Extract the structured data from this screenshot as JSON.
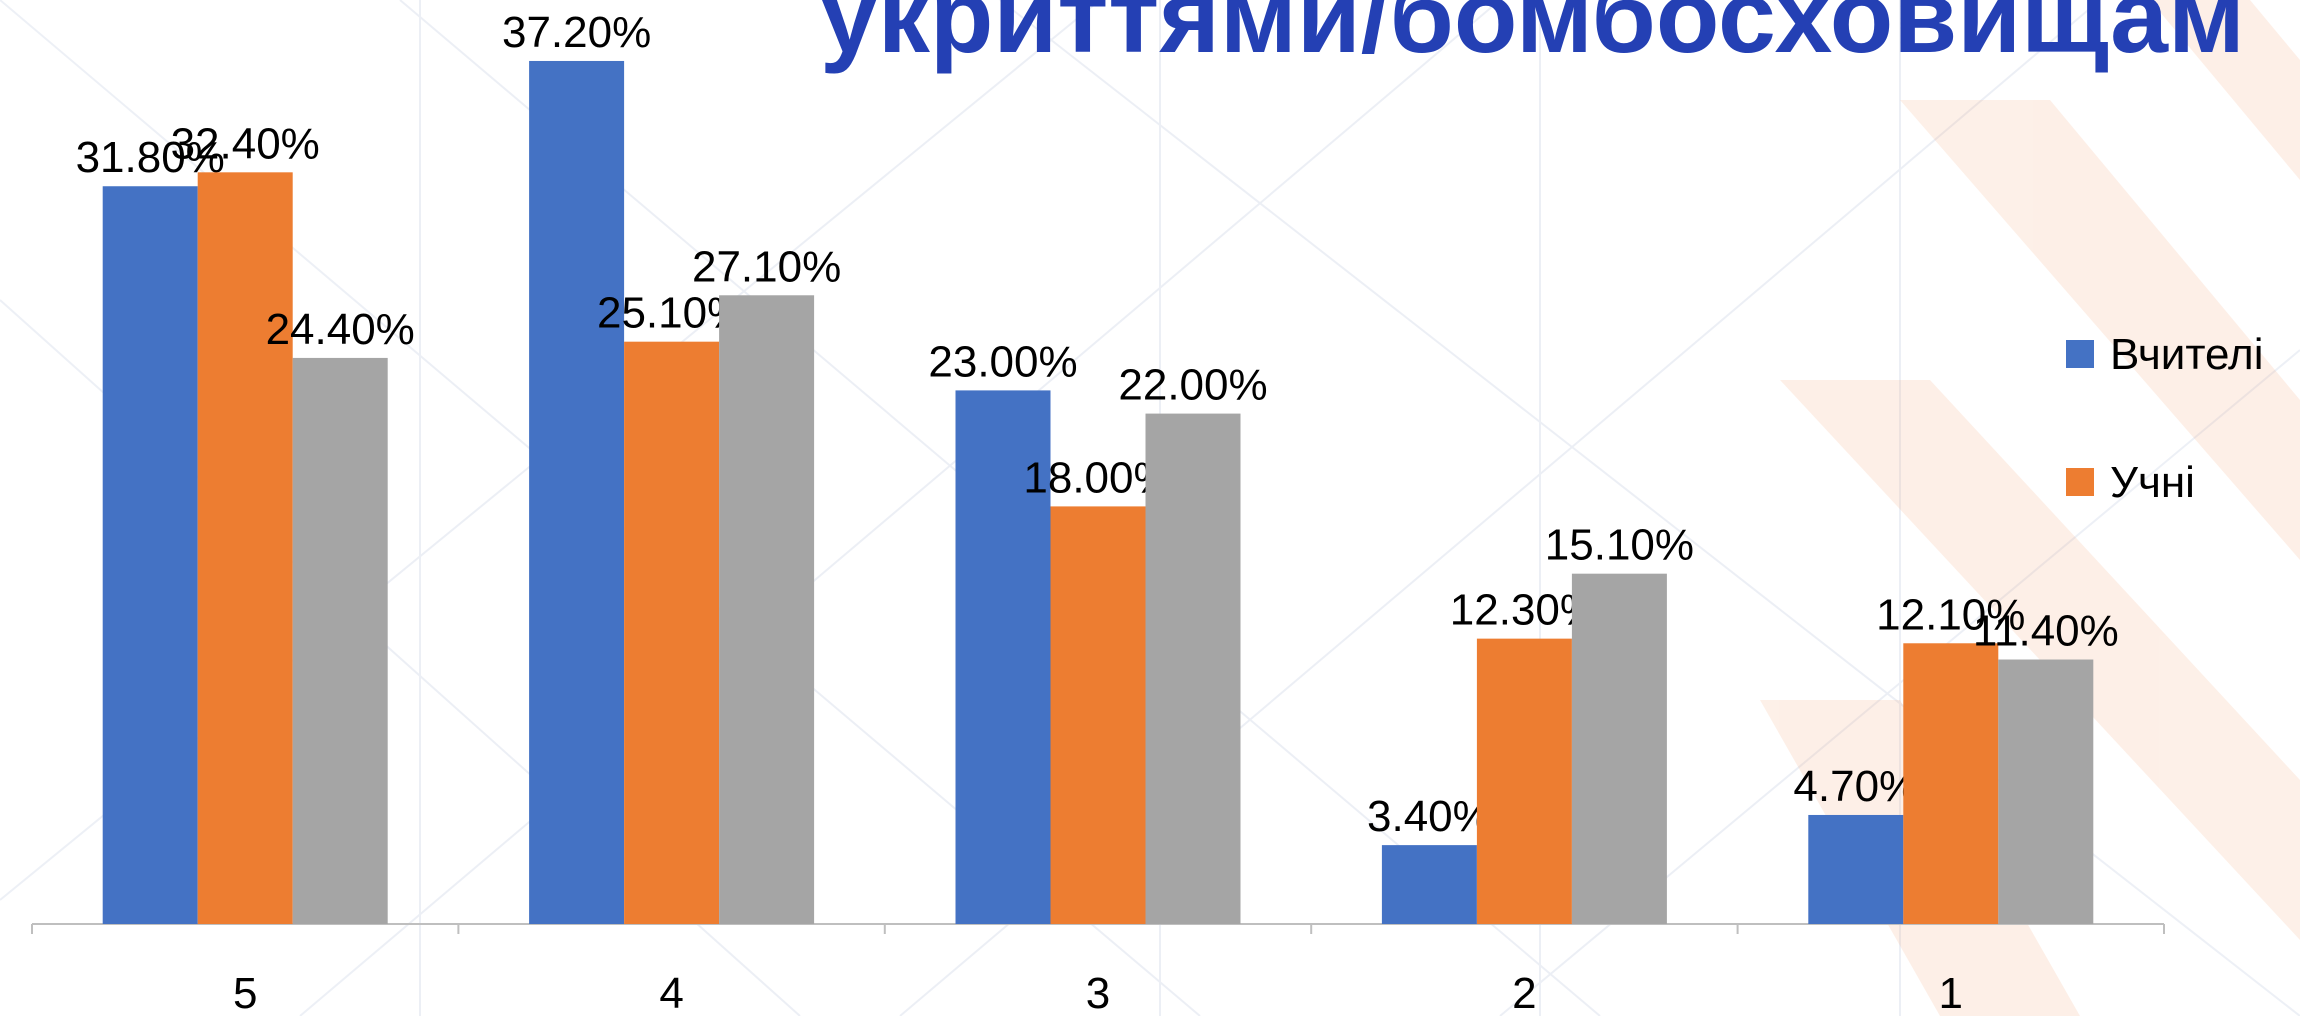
{
  "chart_data": {
    "type": "bar",
    "title": "укриттями/бомбосховищам",
    "categories": [
      "5",
      "4",
      "3",
      "2",
      "1"
    ],
    "series": [
      {
        "name": "Вчителі",
        "color": "#4472c4",
        "values": [
          31.8,
          37.2,
          23.0,
          3.4,
          4.7
        ],
        "value_labels": [
          "31.80%",
          "37.20%",
          "23.00%",
          "3.40%",
          "4.70%"
        ]
      },
      {
        "name": "Учні",
        "color": "#ed7d31",
        "values": [
          32.4,
          25.1,
          18.0,
          12.3,
          12.1
        ],
        "value_labels": [
          "32.40%",
          "25.10%",
          "18.00%",
          "12.30%",
          "12.10%"
        ]
      },
      {
        "color": "#a5a5a5",
        "values": [
          24.4,
          27.1,
          22.0,
          15.1,
          11.4
        ],
        "value_labels": [
          "24.40%",
          "27.10%",
          "22.00%",
          "15.10%",
          "11.40%"
        ]
      }
    ],
    "legend": "right"
  }
}
